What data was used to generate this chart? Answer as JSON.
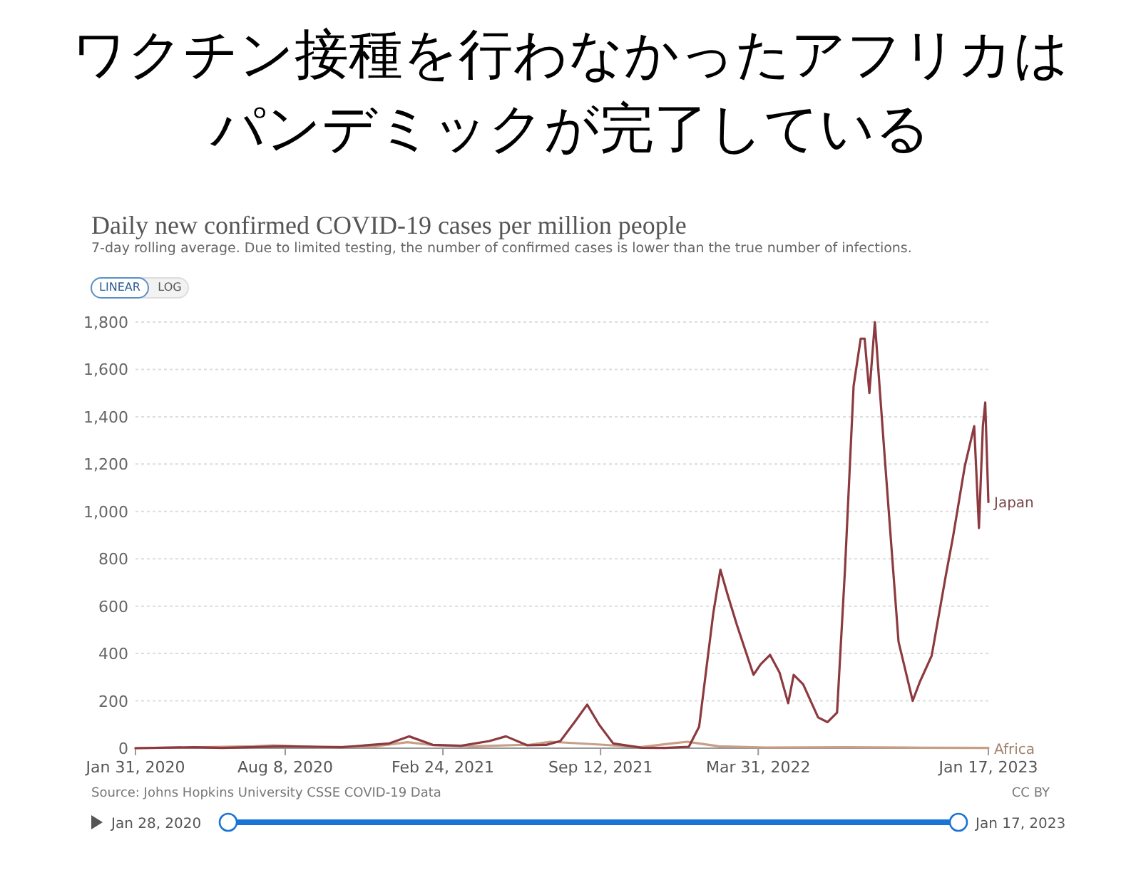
{
  "chart_data": {
    "type": "line",
    "title": "ワクチン接種を行わなかったアフリカはパンデミックが完了している",
    "subtitle": "Daily new confirmed COVID-19 cases per million people",
    "annotations": [
      "7-day rolling average. Due to limited testing, the number of confirmed cases is lower than the true number of infections.",
      "LINEAR",
      "LOG",
      "Source: Johns Hopkins University CSSE COVID-19 Data",
      "CC BY",
      "Jan 28, 2020",
      "Jan 17, 2023"
    ],
    "xlim": [
      "2020-01-31",
      "2023-01-17"
    ],
    "xticks": [
      {
        "value": "2020-01-31",
        "label": "Jan 31, 2020"
      },
      {
        "value": "2020-08-08",
        "label": "Aug 8, 2020"
      },
      {
        "value": "2021-02-24",
        "label": "Feb 24, 2021"
      },
      {
        "value": "2021-09-12",
        "label": "Sep 12, 2021"
      },
      {
        "value": "2022-03-31",
        "label": "Mar 31, 2022"
      },
      {
        "value": "2023-01-17",
        "label": "Jan 17, 2023"
      }
    ],
    "ylim": [
      0,
      1800
    ],
    "yticks": [
      0,
      200,
      400,
      600,
      800,
      {
        "value": 1000,
        "label": "1,000"
      },
      {
        "value": 1200,
        "label": "1,200"
      },
      {
        "value": 1400,
        "label": "1,400"
      },
      {
        "value": 1600,
        "label": "1,600"
      },
      {
        "value": 1800,
        "label": "1,800"
      }
    ],
    "grid": "y",
    "legend": false,
    "marker": "none",
    "line_style": "solid",
    "series": [
      {
        "name": "Japan",
        "color": "#8c3a3f",
        "x": [
          "2020-01-31",
          "2020-04-15",
          "2020-05-20",
          "2020-08-05",
          "2020-10-19",
          "2020-12-18",
          "2021-01-12",
          "2021-02-11",
          "2021-03-19",
          "2021-04-24",
          "2021-05-15",
          "2021-06-11",
          "2021-07-05",
          "2021-07-23",
          "2021-08-10",
          "2021-08-26",
          "2021-09-10",
          "2021-09-28",
          "2021-11-03",
          "2021-12-03",
          "2022-01-02",
          "2022-01-15",
          "2022-02-02",
          "2022-02-11",
          "2022-02-20",
          "2022-03-04",
          "2022-03-25",
          "2022-04-03",
          "2022-04-15",
          "2022-04-27",
          "2022-05-08",
          "2022-05-15",
          "2022-05-27",
          "2022-06-15",
          "2022-06-27",
          "2022-07-09",
          "2022-07-19",
          "2022-07-30",
          "2022-08-08",
          "2022-08-13",
          "2022-08-19",
          "2022-08-26",
          "2022-09-07",
          "2022-09-25",
          "2022-10-13",
          "2022-10-22",
          "2022-11-06",
          "2022-11-24",
          "2022-12-03",
          "2022-12-18",
          "2022-12-30",
          "2023-01-05",
          "2023-01-10",
          "2023-01-13",
          "2023-01-17"
        ],
        "values": [
          0,
          4,
          1,
          8,
          4,
          20,
          50,
          14,
          10,
          30,
          50,
          12,
          14,
          30,
          110,
          184,
          100,
          20,
          2,
          1,
          6,
          90,
          570,
          754,
          650,
          520,
          310,
          354,
          394,
          320,
          190,
          310,
          270,
          130,
          110,
          150,
          750,
          1530,
          1730,
          1730,
          1500,
          1800,
          1250,
          450,
          200,
          280,
          390,
          730,
          890,
          1190,
          1360,
          930,
          1360,
          1460,
          1040
        ]
      },
      {
        "name": "Africa",
        "color": "#c89f86",
        "x": [
          "2020-01-31",
          "2020-06-30",
          "2020-07-24",
          "2020-09-17",
          "2020-11-26",
          "2021-01-10",
          "2021-02-14",
          "2021-04-05",
          "2021-06-15",
          "2021-07-10",
          "2021-09-12",
          "2021-11-01",
          "2021-12-11",
          "2021-12-31",
          "2022-01-15",
          "2022-02-09",
          "2022-04-10",
          "2022-07-19",
          "2022-10-27",
          "2023-01-17"
        ],
        "values": [
          0,
          8,
          12,
          4,
          6,
          25,
          12,
          8,
          15,
          27,
          15,
          4,
          20,
          27,
          20,
          8,
          3,
          4,
          2,
          1
        ]
      }
    ]
  }
}
